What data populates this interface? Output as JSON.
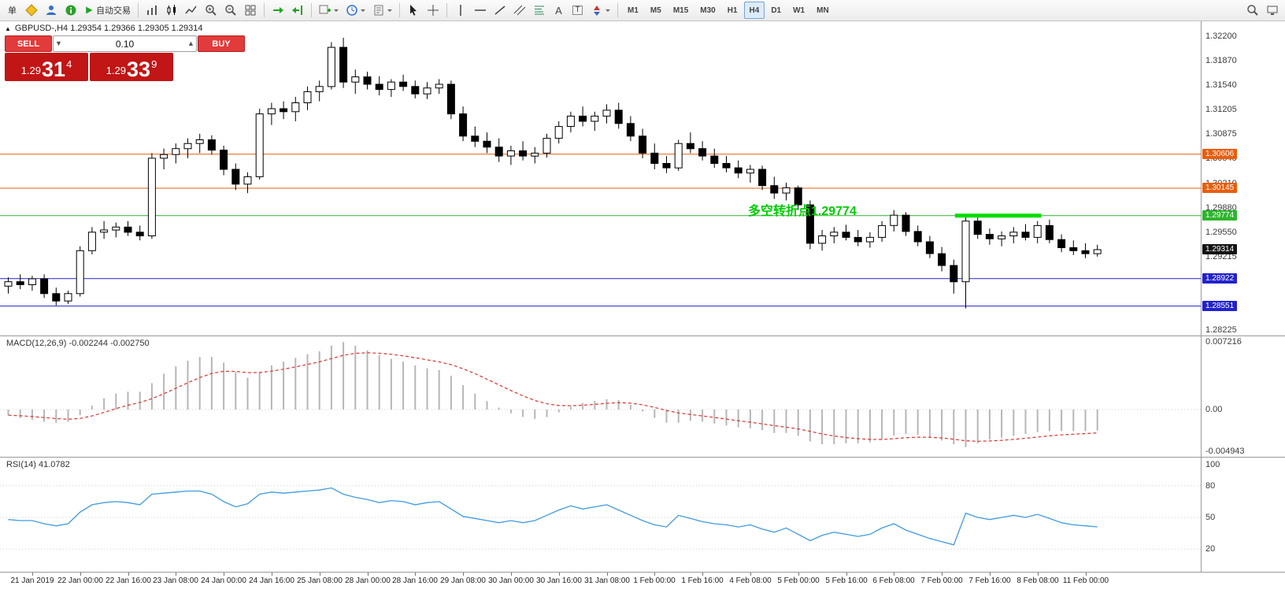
{
  "toolbar": {
    "order_label": "单",
    "autotrading_label": "自动交易",
    "text_tool": "A",
    "label_tool": "T",
    "timeframes": [
      "M1",
      "M5",
      "M15",
      "M30",
      "H1",
      "H4",
      "D1",
      "W1",
      "MN"
    ],
    "active_timeframe": "H4"
  },
  "chart": {
    "info_line": "GBPUSD-,H4 1.29354 1.29366 1.29305 1.29314",
    "one_click": {
      "sell_label": "SELL",
      "buy_label": "BUY",
      "volume": "0.10",
      "sell_price": {
        "prefix": "1.29",
        "big": "31",
        "sup": "4"
      },
      "buy_price": {
        "prefix": "1.29",
        "big": "33",
        "sup": "9"
      }
    },
    "annotation": {
      "text": "多空转折点1.29774",
      "color": "#00CC00"
    }
  },
  "chart_data": {
    "type": "candlestick",
    "symbol": "GBPUSD-",
    "timeframe": "H4",
    "ohlc": [
      [
        1.2882,
        1.2894,
        1.2872,
        1.2888
      ],
      [
        1.2888,
        1.2898,
        1.2878,
        1.2884
      ],
      [
        1.2884,
        1.2896,
        1.2876,
        1.2892
      ],
      [
        1.2892,
        1.2898,
        1.2866,
        1.2872
      ],
      [
        1.2872,
        1.288,
        1.2856,
        1.2862
      ],
      [
        1.2862,
        1.2876,
        1.2858,
        1.2872
      ],
      [
        1.2872,
        1.2936,
        1.2868,
        1.293
      ],
      [
        1.293,
        1.2962,
        1.2925,
        1.2955
      ],
      [
        1.2955,
        1.297,
        1.2946,
        1.2958
      ],
      [
        1.2958,
        1.2968,
        1.2948,
        1.2962
      ],
      [
        1.2962,
        1.297,
        1.295,
        1.2955
      ],
      [
        1.2955,
        1.2964,
        1.2944,
        1.295
      ],
      [
        1.295,
        1.3062,
        1.2946,
        1.3055
      ],
      [
        1.3055,
        1.3068,
        1.304,
        1.306
      ],
      [
        1.306,
        1.3075,
        1.3048,
        1.3068
      ],
      [
        1.3068,
        1.3082,
        1.3055,
        1.3075
      ],
      [
        1.3075,
        1.3088,
        1.3062,
        1.308
      ],
      [
        1.308,
        1.3086,
        1.306,
        1.3066
      ],
      [
        1.3066,
        1.3072,
        1.3032,
        1.304
      ],
      [
        1.304,
        1.3048,
        1.3012,
        1.302
      ],
      [
        1.302,
        1.3036,
        1.3008,
        1.303
      ],
      [
        1.303,
        1.3122,
        1.3026,
        1.3115
      ],
      [
        1.3115,
        1.313,
        1.31,
        1.3122
      ],
      [
        1.3122,
        1.3132,
        1.3108,
        1.3118
      ],
      [
        1.3118,
        1.3138,
        1.3105,
        1.313
      ],
      [
        1.313,
        1.3152,
        1.312,
        1.3145
      ],
      [
        1.3145,
        1.316,
        1.3132,
        1.3152
      ],
      [
        1.3152,
        1.3212,
        1.3148,
        1.3205
      ],
      [
        1.3205,
        1.3218,
        1.315,
        1.3158
      ],
      [
        1.3158,
        1.3175,
        1.3142,
        1.3165
      ],
      [
        1.3165,
        1.3172,
        1.3148,
        1.3155
      ],
      [
        1.3155,
        1.3166,
        1.314,
        1.3148
      ],
      [
        1.3148,
        1.3162,
        1.3138,
        1.3158
      ],
      [
        1.3158,
        1.3168,
        1.3146,
        1.3152
      ],
      [
        1.3152,
        1.316,
        1.3136,
        1.3142
      ],
      [
        1.3142,
        1.3158,
        1.3135,
        1.315
      ],
      [
        1.315,
        1.3162,
        1.3142,
        1.3155
      ],
      [
        1.3155,
        1.316,
        1.3108,
        1.3115
      ],
      [
        1.3115,
        1.3125,
        1.3078,
        1.3085
      ],
      [
        1.3085,
        1.3098,
        1.307,
        1.3078
      ],
      [
        1.3078,
        1.309,
        1.3062,
        1.307
      ],
      [
        1.307,
        1.3082,
        1.305,
        1.3058
      ],
      [
        1.3058,
        1.3072,
        1.3046,
        1.3065
      ],
      [
        1.3065,
        1.3078,
        1.3052,
        1.3058
      ],
      [
        1.3058,
        1.307,
        1.3048,
        1.3062
      ],
      [
        1.3062,
        1.3088,
        1.3056,
        1.3082
      ],
      [
        1.3082,
        1.3105,
        1.3075,
        1.3098
      ],
      [
        1.3098,
        1.3118,
        1.309,
        1.3112
      ],
      [
        1.3112,
        1.3125,
        1.3098,
        1.3105
      ],
      [
        1.3105,
        1.3118,
        1.3092,
        1.3112
      ],
      [
        1.3112,
        1.3128,
        1.3102,
        1.312
      ],
      [
        1.312,
        1.313,
        1.3095,
        1.3102
      ],
      [
        1.3102,
        1.3112,
        1.3078,
        1.3085
      ],
      [
        1.3085,
        1.3095,
        1.3055,
        1.3062
      ],
      [
        1.3062,
        1.3075,
        1.304,
        1.3048
      ],
      [
        1.3048,
        1.3058,
        1.3035,
        1.3042
      ],
      [
        1.3042,
        1.308,
        1.3038,
        1.3075
      ],
      [
        1.3075,
        1.309,
        1.3062,
        1.3068
      ],
      [
        1.3068,
        1.3078,
        1.3052,
        1.3058
      ],
      [
        1.3058,
        1.3068,
        1.3042,
        1.3048
      ],
      [
        1.3048,
        1.3058,
        1.3036,
        1.3042
      ],
      [
        1.3042,
        1.3052,
        1.3028,
        1.3035
      ],
      [
        1.3035,
        1.3046,
        1.3022,
        1.304
      ],
      [
        1.304,
        1.3045,
        1.3012,
        1.3018
      ],
      [
        1.3018,
        1.303,
        1.3,
        1.3008
      ],
      [
        1.3008,
        1.3022,
        1.2998,
        1.3015
      ],
      [
        1.3015,
        1.3018,
        1.2985,
        1.2992
      ],
      [
        1.2992,
        1.2998,
        1.2932,
        1.294
      ],
      [
        1.294,
        1.2958,
        1.293,
        1.295
      ],
      [
        1.295,
        1.2962,
        1.294,
        1.2955
      ],
      [
        1.2955,
        1.2965,
        1.2944,
        1.2948
      ],
      [
        1.2948,
        1.2958,
        1.2936,
        1.2942
      ],
      [
        1.2942,
        1.2955,
        1.2934,
        1.2948
      ],
      [
        1.2948,
        1.297,
        1.2942,
        1.2964
      ],
      [
        1.2964,
        1.2985,
        1.2956,
        1.2978
      ],
      [
        1.2978,
        1.2982,
        1.295,
        1.2956
      ],
      [
        1.2956,
        1.2964,
        1.2936,
        1.2942
      ],
      [
        1.2942,
        1.295,
        1.292,
        1.2926
      ],
      [
        1.2926,
        1.2935,
        1.2902,
        1.291
      ],
      [
        1.291,
        1.2918,
        1.2872,
        1.2888
      ],
      [
        1.2888,
        1.2978,
        1.2852,
        1.297
      ],
      [
        1.297,
        1.2976,
        1.2946,
        1.2952
      ],
      [
        1.2952,
        1.296,
        1.2938,
        1.2946
      ],
      [
        1.2946,
        1.2956,
        1.2936,
        1.295
      ],
      [
        1.295,
        1.2962,
        1.294,
        1.2955
      ],
      [
        1.2955,
        1.2966,
        1.2944,
        1.2948
      ],
      [
        1.2948,
        1.297,
        1.294,
        1.2964
      ],
      [
        1.2964,
        1.2972,
        1.294,
        1.2945
      ],
      [
        1.2945,
        1.2952,
        1.2928,
        1.2934
      ],
      [
        1.2934,
        1.2944,
        1.2924,
        1.293
      ],
      [
        1.293,
        1.294,
        1.292,
        1.2926
      ],
      [
        1.2926,
        1.2938,
        1.2922,
        1.29314
      ]
    ],
    "hlines": [
      {
        "price": 1.30606,
        "label": "1.30606",
        "color": "#E85E0C"
      },
      {
        "price": 1.30145,
        "label": "1.30145",
        "color": "#E85E0C"
      },
      {
        "price": 1.29774,
        "label": "1.29774",
        "color": "#2DB52D"
      },
      {
        "price": 1.28922,
        "label": "1.28922",
        "color": "#2222CC"
      },
      {
        "price": 1.28551,
        "label": "1.28551",
        "color": "#2222CC"
      }
    ],
    "current_price": {
      "value": 1.29314,
      "label": "1.29314",
      "color": "#141414"
    },
    "highlight_segment": {
      "price": 1.29774,
      "from_index": 79.4,
      "to_index": 86.6,
      "color": "#00DD00",
      "thickness": 5
    },
    "price_ticks": [
      "1.32200",
      "1.31870",
      "1.31540",
      "1.31205",
      "1.30875",
      "1.30545",
      "1.30210",
      "1.29880",
      "1.29550",
      "1.29215",
      "1.28225"
    ],
    "macd": {
      "label": "MACD(12,26,9) -0.002244 -0.002750",
      "signal_period": 9,
      "values": [
        -0.0006,
        -0.0009,
        -0.0011,
        -0.0013,
        -0.0014,
        -0.0013,
        -0.0006,
        0.0004,
        0.0012,
        0.0017,
        0.0019,
        0.0019,
        0.0028,
        0.0038,
        0.0046,
        0.0052,
        0.0056,
        0.0056,
        0.005,
        0.004,
        0.0034,
        0.004,
        0.0047,
        0.0051,
        0.0055,
        0.0059,
        0.0062,
        0.0068,
        0.0072,
        0.0068,
        0.0063,
        0.0058,
        0.0054,
        0.0051,
        0.0047,
        0.0044,
        0.0042,
        0.0036,
        0.0026,
        0.0017,
        0.0009,
        0.0002,
        -0.0004,
        -0.0008,
        -0.001,
        -0.0008,
        -0.0003,
        0.0003,
        0.0007,
        0.0009,
        0.0011,
        0.001,
        0.0005,
        -0.0002,
        -0.0009,
        -0.0014,
        -0.0014,
        -0.0012,
        -0.0013,
        -0.0015,
        -0.0017,
        -0.0019,
        -0.002,
        -0.0022,
        -0.0025,
        -0.0025,
        -0.0028,
        -0.0034,
        -0.0037,
        -0.0037,
        -0.0036,
        -0.0036,
        -0.0035,
        -0.0032,
        -0.0028,
        -0.0026,
        -0.0027,
        -0.003,
        -0.0033,
        -0.0037,
        -0.004,
        -0.0036,
        -0.0032,
        -0.003,
        -0.0028,
        -0.0026,
        -0.0024,
        -0.0023,
        -0.0023,
        -0.0023,
        -0.0023,
        -0.002244
      ],
      "axis": [
        {
          "v": 0.007216,
          "t": "0.007216"
        },
        {
          "v": 0,
          "t": "0.00"
        },
        {
          "v": -0.004943,
          "t": "-0.004943"
        }
      ]
    },
    "rsi": {
      "label": "RSI(14) 41.0782",
      "values": [
        48,
        47,
        47,
        44,
        42,
        44,
        55,
        62,
        64,
        65,
        64,
        62,
        72,
        73,
        74,
        75,
        75,
        72,
        65,
        60,
        63,
        72,
        74,
        73,
        74,
        75,
        76,
        78,
        72,
        69,
        67,
        64,
        66,
        65,
        62,
        64,
        65,
        58,
        51,
        49,
        47,
        45,
        47,
        45,
        47,
        52,
        57,
        61,
        58,
        60,
        62,
        57,
        52,
        47,
        43,
        41,
        52,
        49,
        46,
        44,
        43,
        41,
        43,
        39,
        36,
        40,
        34,
        28,
        33,
        36,
        34,
        32,
        34,
        40,
        44,
        38,
        34,
        30,
        27,
        24,
        54,
        50,
        48,
        50,
        52,
        50,
        53,
        49,
        45,
        43,
        42,
        41.0782
      ],
      "levels": [
        80,
        50,
        20
      ],
      "axis": [
        {
          "v": 100,
          "t": "100"
        },
        {
          "v": 80,
          "t": "80"
        },
        {
          "v": 50,
          "t": "50"
        },
        {
          "v": 20,
          "t": "20"
        }
      ]
    },
    "time_labels": [
      {
        "i": 2,
        "t": "21 Jan 2019"
      },
      {
        "i": 6,
        "t": "22 Jan 00:00"
      },
      {
        "i": 10,
        "t": "22 Jan 16:00"
      },
      {
        "i": 14,
        "t": "23 Jan 08:00"
      },
      {
        "i": 18,
        "t": "24 Jan 00:00"
      },
      {
        "i": 22,
        "t": "24 Jan 16:00"
      },
      {
        "i": 26,
        "t": "25 Jan 08:00"
      },
      {
        "i": 30,
        "t": "28 Jan 00:00"
      },
      {
        "i": 34,
        "t": "28 Jan 16:00"
      },
      {
        "i": 38,
        "t": "29 Jan 08:00"
      },
      {
        "i": 42,
        "t": "30 Jan 00:00"
      },
      {
        "i": 46,
        "t": "30 Jan 16:00"
      },
      {
        "i": 50,
        "t": "31 Jan 08:00"
      },
      {
        "i": 54,
        "t": "1 Feb 00:00"
      },
      {
        "i": 58,
        "t": "1 Feb 16:00"
      },
      {
        "i": 62,
        "t": "4 Feb 08:00"
      },
      {
        "i": 66,
        "t": "5 Feb 00:00"
      },
      {
        "i": 70,
        "t": "5 Feb 16:00"
      },
      {
        "i": 74,
        "t": "6 Feb 08:00"
      },
      {
        "i": 78,
        "t": "7 Feb 00:00"
      },
      {
        "i": 82,
        "t": "7 Feb 16:00"
      },
      {
        "i": 86,
        "t": "8 Feb 08:00"
      },
      {
        "i": 90,
        "t": "11 Feb 00:00"
      }
    ]
  }
}
